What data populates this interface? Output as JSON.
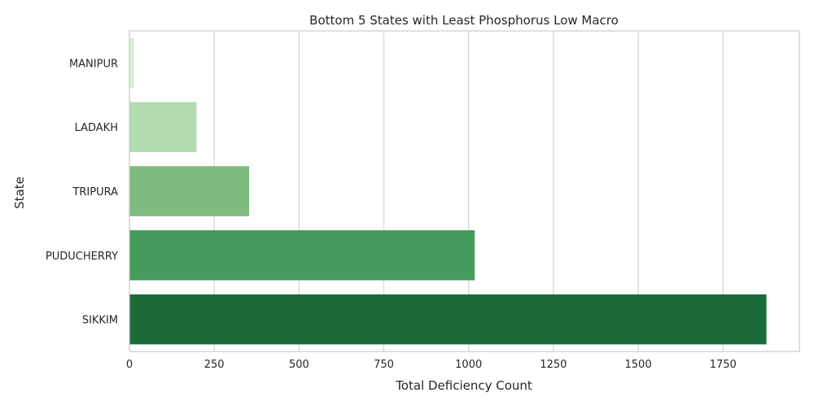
{
  "chart_data": {
    "type": "bar",
    "orientation": "horizontal",
    "title": "Bottom 5 States with Least Phosphorus Low Macro",
    "xlabel": "Total Deficiency Count",
    "ylabel": "State",
    "categories": [
      "MANIPUR",
      "LADAKH",
      "TRIPURA",
      "PUDUCHERRY",
      "SIKKIM"
    ],
    "values": [
      14,
      198,
      353,
      1018,
      1878
    ],
    "colors": [
      "#d9f0d3",
      "#b2dbb0",
      "#7dbb80",
      "#459a5d",
      "#1b6b38"
    ],
    "xlim": [
      0,
      1975
    ],
    "xticks": [
      0,
      250,
      500,
      750,
      1000,
      1250,
      1500,
      1750
    ],
    "grid": "x"
  }
}
